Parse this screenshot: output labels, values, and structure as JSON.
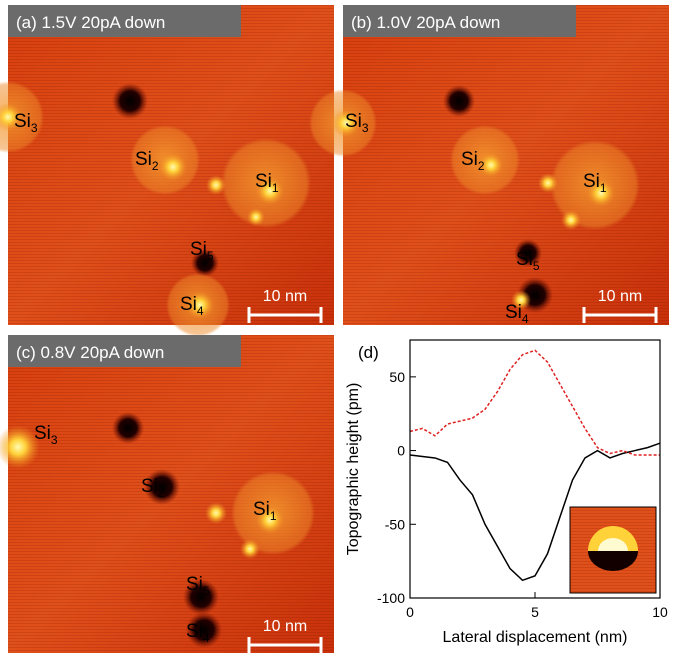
{
  "panels": [
    {
      "header": "(a) 1.5V 20pA down",
      "scale_bar": "10 nm",
      "labels": [
        {
          "text": "Si",
          "sub": "3"
        },
        {
          "text": "Si",
          "sub": "2"
        },
        {
          "text": "Si",
          "sub": "1"
        },
        {
          "text": "Si",
          "sub": "5"
        },
        {
          "text": "Si",
          "sub": "4"
        }
      ]
    },
    {
      "header": "(b) 1.0V 20pA down",
      "scale_bar": "10 nm",
      "labels": [
        {
          "text": "Si",
          "sub": "3"
        },
        {
          "text": "Si",
          "sub": "2"
        },
        {
          "text": "Si",
          "sub": "1"
        },
        {
          "text": "Si",
          "sub": "5"
        },
        {
          "text": "Si",
          "sub": "4"
        }
      ]
    },
    {
      "header": "(c) 0.8V 20pA down",
      "scale_bar": "10 nm",
      "labels": [
        {
          "text": "Si",
          "sub": "3"
        },
        {
          "text": "Si",
          "sub": "2"
        },
        {
          "text": "Si",
          "sub": "1"
        },
        {
          "text": "Si",
          "sub": "5"
        },
        {
          "text": "Si",
          "sub": "4"
        }
      ]
    }
  ],
  "chart_data": {
    "type": "line",
    "panel_label": "(d)",
    "x_label": "Lateral displacement (nm)",
    "y_label": "Topographic height (pm)",
    "xlim": [
      0,
      10
    ],
    "xticks": [
      0,
      5,
      10
    ],
    "ylim": [
      -100,
      75
    ],
    "yticks": [
      -100,
      -50,
      0,
      50
    ],
    "x": [
      0,
      0.5,
      1,
      1.5,
      2,
      2.5,
      3,
      3.5,
      4,
      4.5,
      5,
      5.5,
      6,
      6.5,
      7,
      7.5,
      8,
      8.5,
      9,
      9.5,
      10
    ],
    "series": [
      {
        "color": "#000000",
        "style": "solid",
        "values": [
          -3,
          -4,
          -5,
          -8,
          -20,
          -30,
          -50,
          -65,
          -80,
          -88,
          -85,
          -70,
          -45,
          -20,
          -5,
          0,
          -5,
          -2,
          0,
          2,
          5
        ]
      },
      {
        "color": "#e02020",
        "style": "dashed",
        "values": [
          13,
          15,
          10,
          18,
          20,
          22,
          28,
          40,
          55,
          65,
          68,
          60,
          45,
          30,
          15,
          2,
          -2,
          0,
          -3,
          -3,
          -3
        ]
      }
    ]
  }
}
